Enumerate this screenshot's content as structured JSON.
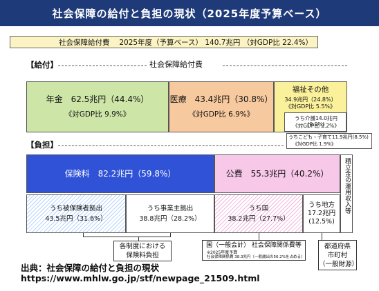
{
  "title": "社会保障の給付と負担の現状（2025年度予算ベース）",
  "summary": "社会保障給付費　 2025年度（予算ベース） 140.7兆円 （対GDP比 22.4%）",
  "chart_data": {
    "type": "table",
    "benefits_section": {
      "label": "【給付】",
      "header": "社会保障給付費",
      "items": [
        {
          "name": "年金",
          "amount_trillion_yen": 62.5,
          "share_pct": 44.4,
          "gdp_pct": 9.9,
          "line1": "年金　62.5兆円（44.4%）",
          "line2": "《対GDP比 9.9%》"
        },
        {
          "name": "医療",
          "amount_trillion_yen": 43.4,
          "share_pct": 30.8,
          "gdp_pct": 6.9,
          "line1": "医療　43.4兆円（30.8%）",
          "line2": "《対GDP比 6.9%》"
        },
        {
          "name": "福祉その他",
          "amount_trillion_yen": 34.9,
          "share_pct": 24.8,
          "gdp_pct": 5.5,
          "line1": "福祉その他",
          "line2": "34.9兆円（24.8%）",
          "line3": "《対GDP比 5.5%》"
        }
      ],
      "sub_items": [
        {
          "name": "うち介護",
          "amount_trillion_yen": 14.0,
          "share_pct": 9.9,
          "gdp_pct": 2.2,
          "line1": "うち介護14.0兆円(9.9%)",
          "line2": "《対GDP比 2.2%》"
        },
        {
          "name": "うちこども・子育て",
          "amount_trillion_yen": 11.9,
          "share_pct": 8.5,
          "gdp_pct": 1.9,
          "line1": "うちこども・子育て11.9兆円(8.5%)",
          "line2": "《対GDP比 1.9%》"
        }
      ]
    },
    "burden_section": {
      "label": "【負担】",
      "items": [
        {
          "name": "保険料",
          "amount_trillion_yen": 82.2,
          "share_pct": 59.8,
          "text": "保険料　82.2兆円（59.8%）"
        },
        {
          "name": "公費",
          "amount_trillion_yen": 55.3,
          "share_pct": 40.2,
          "text": "公費　55.3兆円（40.2%）"
        }
      ],
      "reserve_note": "積立金の運用収入等",
      "sub_items": [
        {
          "name": "うち被保険者拠出",
          "amount_trillion_yen": 43.5,
          "share_pct": 31.6,
          "line1": "うち被保険者拠出",
          "line2": "43.5兆円（31.6%）"
        },
        {
          "name": "うち事業主拠出",
          "amount_trillion_yen": 38.8,
          "share_pct": 28.2,
          "line1": "うち事業主拠出",
          "line2": "38.8兆円（28.2%）"
        },
        {
          "name": "うち国",
          "amount_trillion_yen": 38.2,
          "share_pct": 27.7,
          "line1": "うち国",
          "line2": "38.2兆円（27.7%）"
        },
        {
          "name": "うち地方",
          "amount_trillion_yen": 17.2,
          "share_pct": 12.5,
          "line1": "うち地方",
          "line2": "17.2兆円",
          "line3": "(12.5%)"
        }
      ]
    },
    "callouts": [
      {
        "line1": "各制度における",
        "line2": "保険料負担"
      },
      {
        "line1": "国（一般会計） 社会保障関係費等",
        "line2": "※2025年度予算",
        "line3": "社会保障関係費 38.3兆円（一般歳出の56.2%を占める）"
      },
      {
        "line1": "都道府県",
        "line2": "市町村",
        "line3": "（一般財源）"
      }
    ]
  },
  "source": {
    "line1": "出典：社会保障の給付と負担の現状",
    "line2": "https://www.mhlw.go.jp/stf/newpage_21509.html"
  }
}
